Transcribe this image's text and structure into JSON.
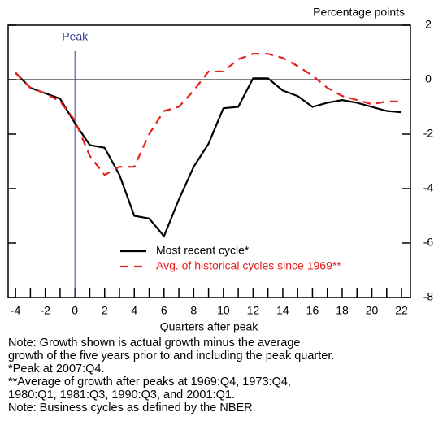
{
  "chart_data": {
    "type": "line",
    "y_axis_label": "Percentage points",
    "x_axis_label": "Quarters after peak",
    "x": [
      -4,
      -3,
      -2,
      -1,
      0,
      1,
      2,
      3,
      4,
      5,
      6,
      7,
      8,
      9,
      10,
      11,
      12,
      13,
      14,
      15,
      16,
      17,
      18,
      19,
      20,
      21,
      22
    ],
    "series": [
      {
        "name": "Most recent cycle*",
        "color": "#000000",
        "dash": false,
        "values": [
          0.25,
          -0.3,
          -0.5,
          -0.7,
          -1.6,
          -2.4,
          -2.5,
          -3.5,
          -5.0,
          -5.1,
          -5.75,
          -4.4,
          -3.2,
          -2.35,
          -1.05,
          -1.0,
          0.05,
          0.05,
          -0.4,
          -0.6,
          -1.0,
          -0.85,
          -0.75,
          -0.85,
          -1.0,
          -1.15,
          -1.2
        ]
      },
      {
        "name": "Avg. of historical cycles since 1969**",
        "color": "#e8201c",
        "dash": true,
        "values": [
          0.25,
          -0.3,
          -0.5,
          -0.8,
          -1.5,
          -2.8,
          -3.5,
          -3.2,
          -3.2,
          -2.0,
          -1.15,
          -1.0,
          -0.4,
          0.3,
          0.3,
          0.75,
          0.95,
          0.95,
          0.8,
          0.5,
          0.15,
          -0.3,
          -0.6,
          -0.75,
          -0.9,
          -0.8,
          -0.8
        ]
      }
    ],
    "xlim": [
      -4.5,
      22.6
    ],
    "xticks": [
      -4,
      -2,
      0,
      2,
      4,
      6,
      8,
      10,
      12,
      14,
      16,
      18,
      20,
      22
    ],
    "xticks_minor": [
      -3,
      -1,
      1,
      3,
      5,
      7,
      9,
      11,
      13,
      15,
      17,
      19,
      21
    ],
    "ylim": [
      -8,
      2
    ],
    "yticks": [
      -8,
      -6,
      -4,
      -2,
      0,
      2
    ],
    "reference_line_y": 0,
    "annotations": [
      {
        "text": "Peak",
        "x": 0,
        "color": "#3b3b9e"
      }
    ],
    "notes": [
      "Note: Growth shown is actual growth minus the average",
      "growth of the five years prior to and including the peak quarter.",
      "*Peak at 2007:Q4.",
      "**Average of growth after peaks at 1969:Q4, 1973:Q4,",
      "1980:Q1, 1981:Q3, 1990:Q3, and 2001:Q1.",
      "Note: Business cycles as defined by the NBER."
    ]
  }
}
